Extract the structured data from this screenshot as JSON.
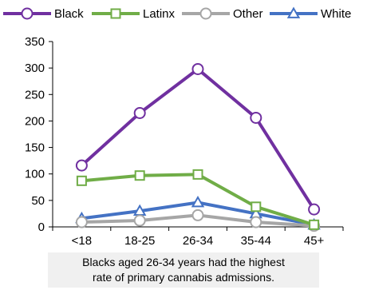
{
  "chart_data": {
    "type": "line",
    "categories": [
      "<18",
      "18-25",
      "26-34",
      "35-44",
      "45+"
    ],
    "series": [
      {
        "name": "Black",
        "marker": "circle",
        "color": "#7030a0",
        "values": [
          116,
          215,
          298,
          206,
          33
        ]
      },
      {
        "name": "Latinx",
        "marker": "square",
        "color": "#70ad47",
        "values": [
          87,
          97,
          99,
          38,
          4
        ]
      },
      {
        "name": "Other",
        "marker": "circle",
        "color": "#a6a6a6",
        "values": [
          9,
          12,
          22,
          9,
          2
        ]
      },
      {
        "name": "White",
        "marker": "triangle",
        "color": "#4472c4",
        "values": [
          16,
          30,
          46,
          25,
          4
        ]
      }
    ],
    "ylim": [
      0,
      350
    ],
    "yticks": [
      0,
      50,
      100,
      150,
      200,
      250,
      300,
      350
    ],
    "legend_position": "top",
    "grid": false
  },
  "caption": {
    "line1": "Blacks aged 26-34 years had the highest",
    "line2": "rate of primary cannabis admissions."
  }
}
